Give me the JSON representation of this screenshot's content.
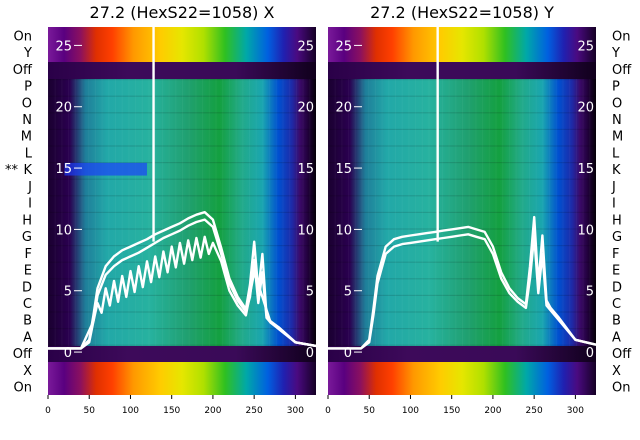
{
  "chart_data": [
    {
      "type": "heatmap",
      "title": "27.2 (HexS22=1058) X",
      "xlim": [
        0,
        325
      ],
      "ylim": [
        -3.5,
        26.5
      ],
      "x_ticks": [
        0,
        50,
        100,
        150,
        200,
        250,
        300
      ],
      "y_ticks": [
        0,
        5,
        10,
        15,
        20,
        25
      ],
      "row_labels": [
        "On",
        "Y",
        "Off",
        "P",
        "O",
        "N",
        "M",
        "L",
        "K",
        "J",
        "I",
        "H",
        "G",
        "F",
        "E",
        "D",
        "C",
        "B",
        "A",
        "Off",
        "X",
        "On"
      ],
      "row_labels_side": "left",
      "flagged_row": "K",
      "flag_text": "**",
      "colormap": "spectral",
      "spike_x": 128,
      "spike_top": 26.5,
      "series": [
        {
          "x": [
            0,
            20,
            40,
            50,
            55,
            60,
            70,
            80,
            90,
            100,
            110,
            120,
            130,
            140,
            150,
            160,
            170,
            180,
            190,
            200,
            210,
            220,
            230,
            240,
            245,
            250,
            255,
            260,
            265,
            270,
            280,
            300,
            325
          ],
          "y": [
            0.3,
            0.3,
            0.3,
            1.0,
            3.0,
            5.2,
            7.0,
            7.8,
            8.3,
            8.6,
            8.9,
            9.2,
            9.6,
            9.9,
            10.2,
            10.5,
            10.9,
            11.2,
            11.4,
            10.8,
            8.5,
            6.0,
            4.5,
            3.5,
            5.5,
            9.0,
            5.0,
            8.0,
            3.0,
            2.5,
            2.0,
            0.8,
            0.5
          ]
        },
        {
          "x": [
            0,
            20,
            40,
            50,
            55,
            60,
            70,
            80,
            90,
            100,
            110,
            120,
            130,
            140,
            150,
            160,
            170,
            180,
            190,
            200,
            210,
            220,
            230,
            240,
            245,
            250,
            255,
            260,
            265,
            270,
            280,
            300,
            325
          ],
          "y": [
            0.3,
            0.3,
            0.3,
            0.8,
            2.5,
            4.6,
            6.3,
            7.0,
            7.5,
            7.8,
            8.1,
            8.5,
            8.9,
            9.3,
            9.6,
            9.9,
            10.3,
            10.6,
            10.8,
            10.2,
            8.0,
            5.6,
            4.2,
            3.3,
            4.5,
            7.5,
            4.0,
            6.5,
            2.8,
            2.4,
            2.0,
            0.8,
            0.5
          ]
        },
        {
          "x": [
            0,
            40,
            55,
            60,
            65,
            70,
            75,
            80,
            85,
            90,
            95,
            100,
            105,
            110,
            115,
            120,
            125,
            130,
            135,
            140,
            145,
            150,
            155,
            160,
            165,
            170,
            175,
            180,
            185,
            190,
            195,
            200,
            210,
            220,
            230,
            240,
            250,
            260,
            270,
            300,
            325
          ],
          "y": [
            0.3,
            0.3,
            2.5,
            4.0,
            3.2,
            5.2,
            3.8,
            5.8,
            4.1,
            6.2,
            4.5,
            6.6,
            4.9,
            7.0,
            5.3,
            7.4,
            5.7,
            7.8,
            6.1,
            8.2,
            6.5,
            8.6,
            6.9,
            8.9,
            7.2,
            9.1,
            7.5,
            9.3,
            7.7,
            9.4,
            8.0,
            8.9,
            7.4,
            5.0,
            3.8,
            3.0,
            6.5,
            4.5,
            2.4,
            0.8,
            0.5
          ]
        }
      ]
    },
    {
      "type": "heatmap",
      "title": "27.2 (HexS22=1058) Y",
      "xlim": [
        0,
        325
      ],
      "ylim": [
        -3.5,
        26.5
      ],
      "x_ticks": [
        0,
        50,
        100,
        150,
        200,
        250,
        300
      ],
      "y_ticks": [
        0,
        5,
        10,
        15,
        20,
        25
      ],
      "row_labels": [
        "On",
        "Y",
        "Off",
        "P",
        "O",
        "N",
        "M",
        "L",
        "K",
        "J",
        "I",
        "H",
        "G",
        "F",
        "E",
        "D",
        "C",
        "B",
        "A",
        "Off",
        "X",
        "On"
      ],
      "row_labels_side": "right",
      "colormap": "spectral",
      "spike_x": 133,
      "spike_top": 26.5,
      "series": [
        {
          "x": [
            0,
            20,
            40,
            50,
            55,
            60,
            70,
            80,
            90,
            100,
            110,
            120,
            130,
            140,
            150,
            160,
            170,
            180,
            190,
            200,
            210,
            220,
            230,
            240,
            245,
            250,
            255,
            260,
            265,
            270,
            280,
            300,
            325
          ],
          "y": [
            0.3,
            0.3,
            0.3,
            1.0,
            3.5,
            6.2,
            8.6,
            9.2,
            9.4,
            9.5,
            9.6,
            9.7,
            9.8,
            9.9,
            10.0,
            10.1,
            10.2,
            10.0,
            9.8,
            8.6,
            6.5,
            5.2,
            4.4,
            3.9,
            7.0,
            11.0,
            5.5,
            9.5,
            4.2,
            3.6,
            2.8,
            1.0,
            0.6
          ]
        },
        {
          "x": [
            0,
            20,
            40,
            50,
            55,
            60,
            70,
            80,
            90,
            100,
            110,
            120,
            130,
            140,
            150,
            160,
            170,
            180,
            190,
            200,
            210,
            220,
            230,
            240,
            245,
            250,
            255,
            260,
            265,
            270,
            280,
            300,
            325
          ],
          "y": [
            0.3,
            0.3,
            0.3,
            0.8,
            3.0,
            5.6,
            8.0,
            8.6,
            8.8,
            8.9,
            9.0,
            9.1,
            9.2,
            9.3,
            9.4,
            9.5,
            9.6,
            9.4,
            9.2,
            8.0,
            6.0,
            4.8,
            4.1,
            3.6,
            6.0,
            9.5,
            4.8,
            8.0,
            3.8,
            3.4,
            2.6,
            1.0,
            0.6
          ]
        }
      ]
    }
  ]
}
